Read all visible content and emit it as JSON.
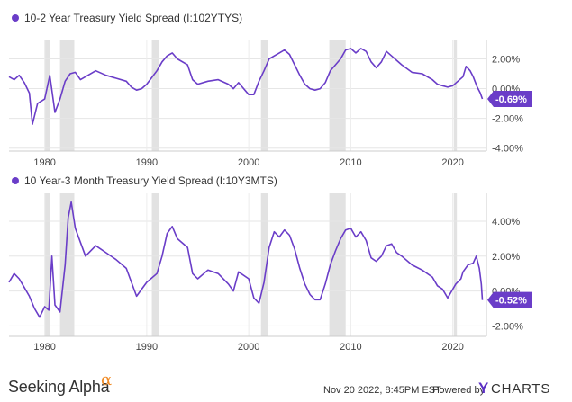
{
  "chart_data": [
    {
      "type": "line",
      "title": "10-2 Year Treasury Yield Spread (I:102YTYS)",
      "series": [
        {
          "name": "10-2 Year Treasury Yield Spread (I:102YTYS)",
          "color": "#6a3dc8",
          "x": [
            1976.5,
            1977.0,
            1977.5,
            1978.0,
            1978.5,
            1978.8,
            1979.3,
            1980.0,
            1980.5,
            1981.0,
            1981.5,
            1982.0,
            1982.5,
            1983.0,
            1983.5,
            1984.0,
            1985.0,
            1986.0,
            1987.0,
            1988.0,
            1988.5,
            1989.0,
            1989.5,
            1990.0,
            1991.0,
            1991.5,
            1992.0,
            1992.5,
            1993.0,
            1994.0,
            1994.5,
            1995.0,
            1996.0,
            1997.0,
            1998.0,
            1998.5,
            1999.0,
            2000.0,
            2000.5,
            2001.0,
            2001.5,
            2002.0,
            2002.5,
            2003.0,
            2003.5,
            2004.0,
            2004.5,
            2005.0,
            2005.5,
            2006.0,
            2006.5,
            2007.0,
            2007.5,
            2008.0,
            2008.5,
            2009.0,
            2009.5,
            2010.0,
            2010.5,
            2011.0,
            2011.5,
            2012.0,
            2012.5,
            2013.0,
            2013.5,
            2014.0,
            2014.5,
            2015.0,
            2016.0,
            2017.0,
            2018.0,
            2018.5,
            2019.0,
            2019.5,
            2020.0,
            2020.5,
            2021.0,
            2021.3,
            2021.7,
            2022.0,
            2022.4,
            2022.7,
            2022.9
          ],
          "values": [
            0.8,
            0.6,
            0.9,
            0.4,
            -0.3,
            -2.4,
            -1.0,
            -0.7,
            0.9,
            -1.6,
            -0.7,
            0.5,
            1.0,
            1.1,
            0.6,
            0.8,
            1.2,
            0.9,
            0.7,
            0.5,
            0.1,
            -0.1,
            0.0,
            0.3,
            1.2,
            1.8,
            2.2,
            2.4,
            2.0,
            1.6,
            0.6,
            0.3,
            0.5,
            0.6,
            0.3,
            0.0,
            0.4,
            -0.4,
            -0.4,
            0.5,
            1.2,
            2.0,
            2.2,
            2.4,
            2.6,
            2.3,
            1.6,
            0.9,
            0.3,
            0.0,
            -0.1,
            0.0,
            0.4,
            1.2,
            1.6,
            2.0,
            2.6,
            2.7,
            2.4,
            2.7,
            2.5,
            1.8,
            1.4,
            1.8,
            2.5,
            2.2,
            1.9,
            1.6,
            1.1,
            1.0,
            0.6,
            0.3,
            0.2,
            0.1,
            0.2,
            0.5,
            0.8,
            1.5,
            1.2,
            0.8,
            0.1,
            -0.3,
            -0.69
          ]
        }
      ],
      "xlim": [
        1976.5,
        2023.3
      ],
      "ylim": [
        -4.2,
        3.3
      ],
      "xticks": [
        1980,
        1990,
        2000,
        2010,
        2020
      ],
      "xtick_labels": [
        "1980",
        "1990",
        "2000",
        "2010",
        "2020"
      ],
      "yticks": [
        2,
        0,
        -2,
        -4
      ],
      "ytick_labels": [
        "2.00%",
        "0.00%",
        "-2.00%",
        "-4.00%"
      ],
      "last_value_label": "-0.69%",
      "recessions": [
        [
          1980.0,
          1980.5
        ],
        [
          1981.5,
          1982.9
        ],
        [
          1990.5,
          1991.2
        ],
        [
          2001.2,
          2001.9
        ],
        [
          2007.9,
          2009.5
        ],
        [
          2020.1,
          2020.4
        ]
      ],
      "recession_color": "#e2e2e2",
      "grid": true,
      "legend_position": "top-left"
    },
    {
      "type": "line",
      "title": "10 Year-3 Month Treasury Yield Spread (I:10Y3MTS)",
      "series": [
        {
          "name": "10 Year-3 Month Treasury Yield Spread (I:10Y3MTS)",
          "color": "#6a3dc8",
          "x": [
            1976.5,
            1977.0,
            1977.5,
            1978.0,
            1978.5,
            1979.0,
            1979.5,
            1980.0,
            1980.4,
            1980.7,
            1981.0,
            1981.5,
            1982.0,
            1982.3,
            1982.6,
            1983.0,
            1984.0,
            1985.0,
            1986.0,
            1987.0,
            1988.0,
            1988.5,
            1989.0,
            1989.5,
            1990.0,
            1991.0,
            1991.5,
            1992.0,
            1992.5,
            1993.0,
            1994.0,
            1994.5,
            1995.0,
            1996.0,
            1997.0,
            1998.0,
            1998.5,
            1999.0,
            2000.0,
            2000.5,
            2001.0,
            2001.5,
            2002.0,
            2002.5,
            2003.0,
            2003.5,
            2004.0,
            2004.5,
            2005.0,
            2005.5,
            2006.0,
            2006.5,
            2007.0,
            2007.5,
            2008.0,
            2008.5,
            2009.0,
            2009.5,
            2010.0,
            2010.5,
            2011.0,
            2011.5,
            2012.0,
            2012.5,
            2013.0,
            2013.5,
            2014.0,
            2014.5,
            2015.0,
            2016.0,
            2017.0,
            2018.0,
            2018.5,
            2019.0,
            2019.5,
            2020.0,
            2020.3,
            2020.8,
            2021.0,
            2021.5,
            2022.0,
            2022.3,
            2022.6,
            2022.8,
            2022.9
          ],
          "values": [
            0.5,
            1.0,
            0.7,
            0.2,
            -0.3,
            -1.0,
            -1.5,
            -0.9,
            -1.1,
            2.0,
            -0.8,
            -1.2,
            1.5,
            4.2,
            5.1,
            3.6,
            2.0,
            2.6,
            2.2,
            1.8,
            1.3,
            0.5,
            -0.3,
            0.1,
            0.5,
            1.0,
            2.0,
            3.3,
            3.7,
            3.0,
            2.5,
            1.0,
            0.7,
            1.2,
            1.0,
            0.4,
            0.0,
            1.1,
            0.7,
            -0.4,
            -0.7,
            0.5,
            2.5,
            3.4,
            3.1,
            3.5,
            3.2,
            2.4,
            1.3,
            0.4,
            -0.2,
            -0.5,
            -0.5,
            0.4,
            1.5,
            2.3,
            3.0,
            3.5,
            3.6,
            3.1,
            3.4,
            2.9,
            1.9,
            1.7,
            2.0,
            2.6,
            2.7,
            2.2,
            2.0,
            1.5,
            1.2,
            0.8,
            0.3,
            0.1,
            -0.4,
            0.1,
            0.4,
            0.7,
            1.1,
            1.5,
            1.6,
            2.0,
            1.3,
            0.4,
            -0.52
          ]
        }
      ],
      "xlim": [
        1976.5,
        2023.3
      ],
      "ylim": [
        -2.6,
        5.6
      ],
      "xticks": [
        1980,
        1990,
        2000,
        2010,
        2020
      ],
      "xtick_labels": [
        "1980",
        "1990",
        "2000",
        "2010",
        "2020"
      ],
      "yticks": [
        4,
        2,
        0,
        -2
      ],
      "ytick_labels": [
        "4.00%",
        "2.00%",
        "0.00%",
        "-2.00%"
      ],
      "last_value_label": "-0.52%",
      "recessions": [
        [
          1980.0,
          1980.5
        ],
        [
          1981.5,
          1982.9
        ],
        [
          1990.5,
          1991.2
        ],
        [
          2001.2,
          2001.9
        ],
        [
          2007.9,
          2009.5
        ],
        [
          2020.1,
          2020.4
        ]
      ],
      "recession_color": "#e2e2e2",
      "grid": true,
      "legend_position": "top-left"
    }
  ],
  "footer": {
    "brand": "Seeking Alpha",
    "brand_alpha": "α",
    "timestamp": "Nov 20 2022, 8:45PM EST.",
    "powered_by": "Powered by",
    "ycharts_y": "Y",
    "ycharts_rest": "CHARTS"
  },
  "colors": {
    "accent": "#6a3dc8",
    "brand_alpha": "#f08a24",
    "recession": "#e2e2e2"
  }
}
